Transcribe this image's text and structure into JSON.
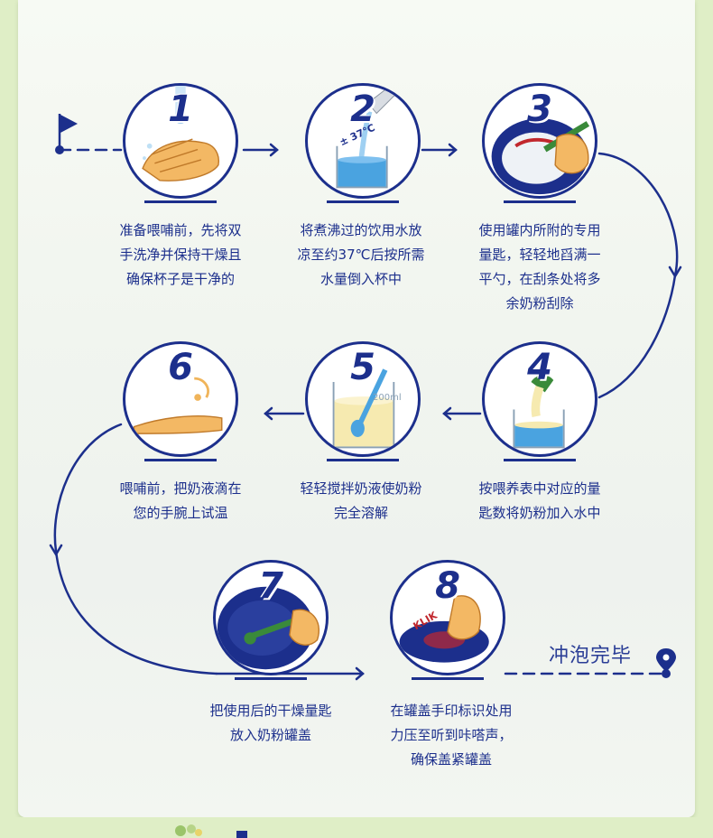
{
  "colors": {
    "navy": "#1c2f8c",
    "water": "#4aa3e0",
    "skin": "#f0b45a",
    "milk": "#f6eab0"
  },
  "steps": [
    {
      "number": "1",
      "text": "准备喂哺前，先将双\n手洗净并保持干燥且\n确保杯子是干净的",
      "icon": "hand-washing-icon"
    },
    {
      "number": "2",
      "text": "将煮沸过的饮用水放\n凉至约37℃后按所需\n水量倒入杯中",
      "icon": "pour-water-icon",
      "temperature_label": "± 37℃"
    },
    {
      "number": "3",
      "text": "使用罐内所附的专用\n量匙，轻轻地舀满一\n平勺，在刮条处将多\n余奶粉刮除",
      "icon": "scoop-powder-icon"
    },
    {
      "number": "4",
      "text": "按喂养表中对应的量\n匙数将奶粉加入水中",
      "icon": "add-powder-icon"
    },
    {
      "number": "5",
      "text": "轻轻搅拌奶液使奶粉\n完全溶解",
      "icon": "stir-milk-icon"
    },
    {
      "number": "6",
      "text": "喂哺前，把奶液滴在\n您的手腕上试温",
      "icon": "wrist-test-icon"
    },
    {
      "number": "7",
      "text": "把使用后的干燥量匙\n放入奶粉罐盖",
      "icon": "store-scoop-icon"
    },
    {
      "number": "8",
      "text": "在罐盖手印标识处用\n力压至听到咔嗒声，\n确保盖紧罐盖",
      "icon": "press-lid-icon",
      "click_label": "KLIK"
    }
  ],
  "finish_label": "冲泡完毕",
  "start_icon": "flag-icon",
  "end_icon": "location-pin-icon",
  "beaker_label": "200ml"
}
